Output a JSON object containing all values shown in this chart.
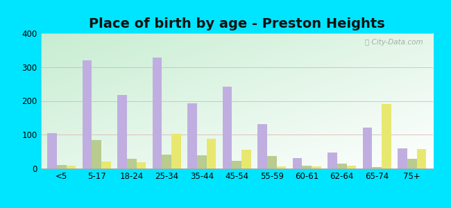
{
  "title": "Place of birth by age - Preston Heights",
  "categories": [
    "<5",
    "5-17",
    "18-24",
    "25-34",
    "35-44",
    "45-54",
    "55-59",
    "60-61",
    "62-64",
    "65-74",
    "75+"
  ],
  "born_in_state": [
    105,
    320,
    218,
    328,
    192,
    242,
    132,
    30,
    48,
    122,
    60
  ],
  "born_other_state": [
    10,
    85,
    28,
    42,
    38,
    22,
    37,
    8,
    15,
    5,
    28
  ],
  "foreign_born": [
    8,
    20,
    18,
    102,
    88,
    55,
    7,
    7,
    8,
    190,
    57
  ],
  "color_state": "#c0aee0",
  "color_other": "#b8cc90",
  "color_foreign": "#e8e870",
  "outer_bg": "#00e5ff",
  "ylim": [
    0,
    400
  ],
  "yticks": [
    0,
    100,
    200,
    300,
    400
  ],
  "title_fontsize": 14,
  "bar_width": 0.27
}
